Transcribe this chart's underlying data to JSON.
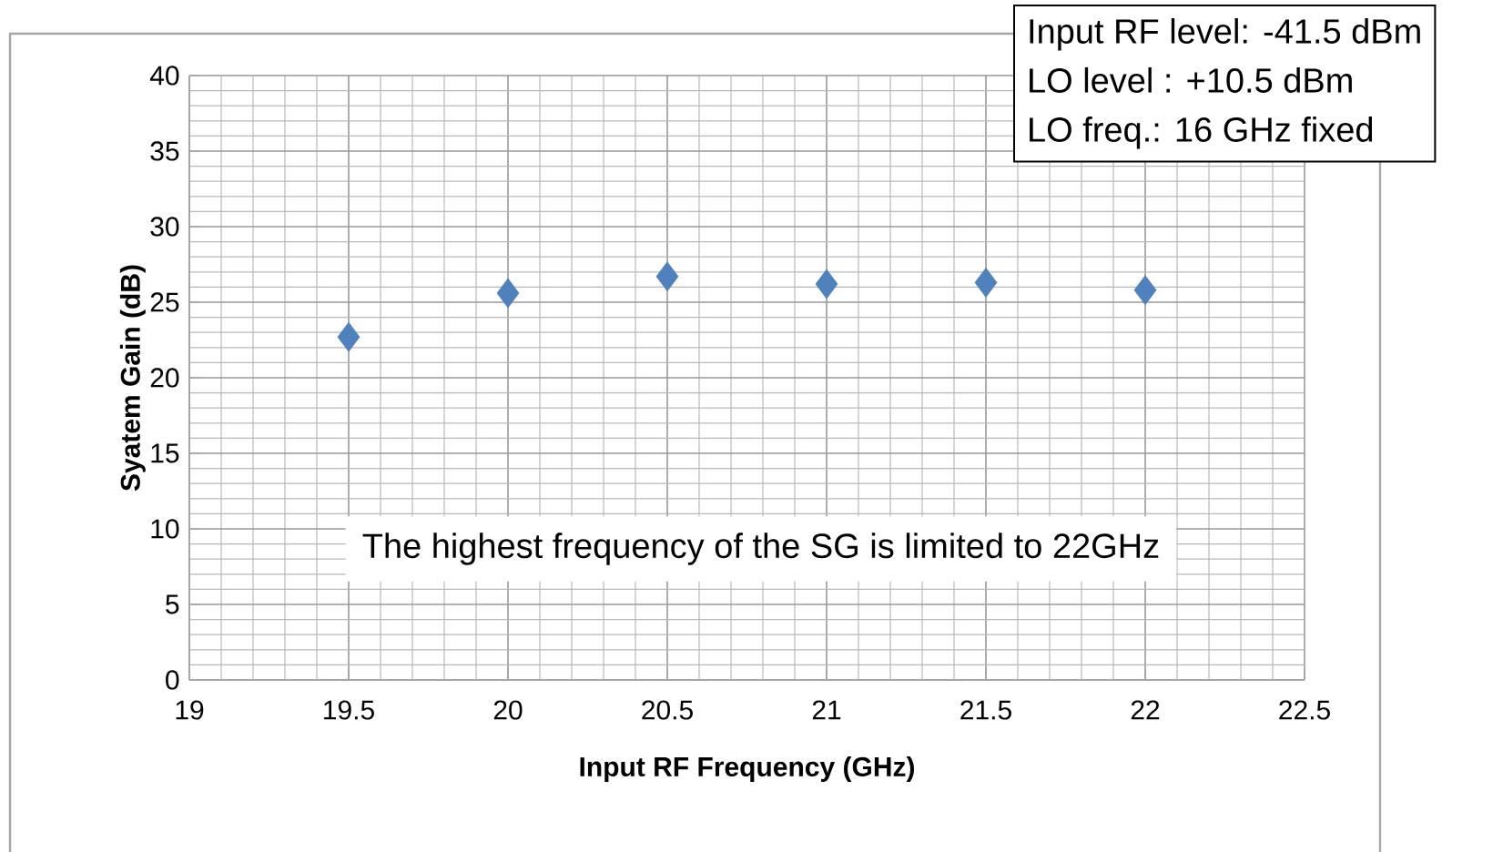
{
  "chart_data": {
    "type": "scatter",
    "xlabel": "Input RF Frequency (GHz)",
    "ylabel": "Syatem Gain  (dB)",
    "x": [
      19.5,
      20,
      20.5,
      21,
      21.5,
      22
    ],
    "series": [
      {
        "color": "#4f81bd",
        "values": [
          22.7,
          25.6,
          26.7,
          26.2,
          26.3,
          25.8
        ]
      }
    ],
    "xlim": [
      19,
      22.5
    ],
    "xticks": [
      19,
      19.5,
      20,
      20.5,
      21,
      21.5,
      22,
      22.5
    ],
    "ylim": [
      0,
      40
    ],
    "yticks": [
      0,
      5,
      10,
      15,
      20,
      25,
      30,
      35,
      40
    ],
    "grid": true,
    "marker": "diamond",
    "annotations": [
      "Input RF level: -41.5 dBm",
      "LO level : +10.5 dBm",
      "LO freq.: 16 GHz fixed",
      "The highest frequency of the SG is limited to 22GHz"
    ]
  }
}
